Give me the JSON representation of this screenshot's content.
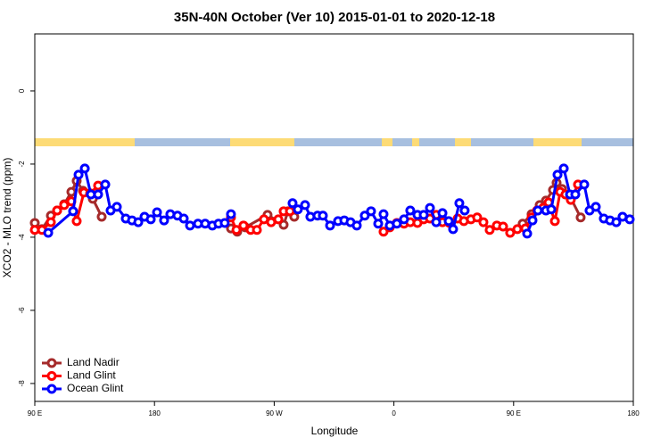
{
  "chart_data": {
    "type": "line",
    "title": "35N-40N October (Ver 10)   2015-01-01 to 2020-12-18",
    "x_label": "Longitude",
    "y_label": "XCO2 - MLO trend (ppm)",
    "xlim": [
      90,
      540
    ],
    "xticks": [
      {
        "value": 90,
        "label": "90 E"
      },
      180,
      {
        "value": 270,
        "label": "90 W"
      },
      {
        "value": 360,
        "label": "0"
      },
      {
        "value": 450,
        "label": "90 E"
      },
      {
        "value": 540,
        "label": "180"
      }
    ],
    "ylim": [
      -8.49,
      1.56
    ],
    "yticks": [
      -8,
      -6,
      -4,
      -2,
      0
    ],
    "legend": "bottom-left",
    "series": [
      {
        "name": "Land Nadir",
        "color": "#a52a2a",
        "x": [
          90,
          95.4,
          102.1,
          106.8,
          112.1,
          117.5,
          121.5,
          126.2,
          133.6,
          140.3,
          null,
          237.5,
          242.2,
          248.3,
          265.0,
          277.1,
          280.4,
          285.1,
          null,
          456.8,
          463.5,
          469.6,
          474.3,
          479.6,
          482.3,
          486.4,
          493.0,
          500.4
        ],
        "values": [
          -3.61,
          -3.78,
          -3.41,
          -3.27,
          -3.1,
          -2.76,
          -2.46,
          -2.73,
          -2.95,
          -3.44,
          null,
          -3.76,
          -3.85,
          -3.73,
          -3.39,
          -3.66,
          -3.29,
          -3.44,
          null,
          -3.63,
          -3.37,
          -3.12,
          -3.0,
          -2.71,
          -2.51,
          -2.68,
          -2.93,
          -3.46
        ]
      },
      {
        "name": "Land Glint",
        "color": "#ff0000",
        "x": [
          90,
          95.4,
          102.1,
          106.8,
          112.1,
          117.5,
          121.5,
          126.9,
          131.6,
          137.6,
          null,
          237.5,
          241.6,
          246.9,
          252.3,
          257.0,
          262.3,
          267.7,
          273.1,
          277.1,
          281.8,
          null,
          352.2,
          356.9,
          362.2,
          367.6,
          372.3,
          377.7,
          382.4,
          387.1,
          391.8,
          396.5,
          401.8,
          407.9,
          412.6,
          417.9,
          422.6,
          427.3,
          432.0,
          437.4,
          442.1,
          447.4,
          452.8,
          458.8,
          463.5,
          467.6,
          472.2,
          476.3,
          481.0,
          485.0,
          489.0,
          493.0,
          498.4
        ],
        "values": [
          -3.8,
          -3.8,
          -3.59,
          -3.27,
          -3.12,
          -3.02,
          -3.56,
          -2.78,
          -2.8,
          -2.59,
          null,
          -3.46,
          -3.8,
          -3.68,
          -3.8,
          -3.8,
          -3.51,
          -3.59,
          -3.51,
          -3.29,
          -3.29,
          null,
          -3.85,
          -3.73,
          -3.61,
          -3.63,
          -3.59,
          -3.61,
          -3.51,
          -3.49,
          -3.39,
          -3.59,
          -3.61,
          -3.49,
          -3.56,
          -3.51,
          -3.46,
          -3.59,
          -3.8,
          -3.68,
          -3.71,
          -3.88,
          -3.78,
          -3.76,
          -3.46,
          -3.27,
          -3.2,
          -3.05,
          -3.56,
          -2.76,
          -2.83,
          -2.98,
          -2.56
        ]
      },
      {
        "name": "Ocean Glint",
        "color": "#0000ff",
        "x": [
          100.1,
          118.8,
          122.9,
          127.6,
          132.2,
          137.6,
          143.0,
          147.0,
          151.7,
          158.4,
          163.1,
          167.8,
          172.5,
          177.2,
          181.9,
          187.2,
          191.9,
          197.3,
          202.0,
          206.7,
          212.7,
          218.1,
          223.5,
          228.1,
          232.8,
          237.5,
          null,
          283.8,
          287.8,
          293.2,
          297.2,
          302.6,
          306.6,
          312.0,
          318.0,
          322.7,
          327.4,
          332.1,
          338.1,
          342.8,
          348.2,
          352.2,
          356.9,
          362.2,
          367.6,
          372.3,
          377.7,
          382.4,
          387.1,
          391.8,
          396.5,
          401.2,
          404.5,
          409.2,
          413.2,
          null,
          460.2,
          464.2,
          468.2,
          474.3,
          478.3,
          483.0,
          487.7,
          492.4,
          496.4,
          503.1,
          507.1,
          511.8,
          517.8,
          522.5,
          527.2,
          531.9,
          537.3
        ],
        "values": [
          -3.88,
          -3.29,
          -2.29,
          -2.12,
          -2.83,
          -2.83,
          -2.56,
          -3.27,
          -3.17,
          -3.49,
          -3.54,
          -3.59,
          -3.44,
          -3.51,
          -3.32,
          -3.54,
          -3.37,
          -3.41,
          -3.49,
          -3.68,
          -3.63,
          -3.63,
          -3.68,
          -3.63,
          -3.61,
          -3.37,
          null,
          -3.07,
          -3.24,
          -3.12,
          -3.44,
          -3.41,
          -3.41,
          -3.68,
          -3.56,
          -3.54,
          -3.59,
          -3.68,
          -3.41,
          -3.29,
          -3.63,
          -3.37,
          -3.68,
          -3.63,
          -3.51,
          -3.27,
          -3.39,
          -3.39,
          -3.2,
          -3.59,
          -3.34,
          -3.56,
          -3.78,
          -3.07,
          -3.27,
          null,
          -3.9,
          -3.54,
          -3.27,
          -3.27,
          -3.24,
          -2.29,
          -2.12,
          -2.83,
          -2.83,
          -2.56,
          -3.27,
          -3.17,
          -3.49,
          -3.54,
          -3.59,
          -3.44,
          -3.51
        ]
      }
    ]
  }
}
